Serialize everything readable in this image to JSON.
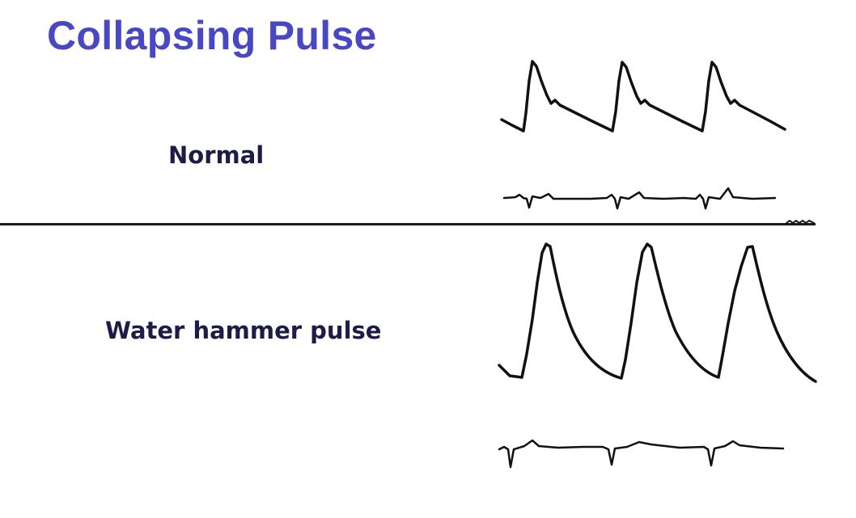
{
  "slide": {
    "title": "Collapsing Pulse"
  },
  "sections": [
    {
      "label": "Normal"
    },
    {
      "label": "Water hammer pulse"
    }
  ]
}
